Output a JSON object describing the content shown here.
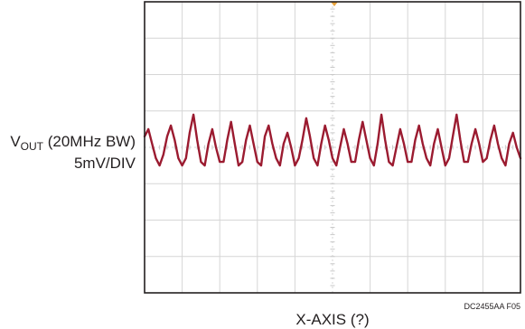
{
  "chart_data": {
    "type": "line",
    "title": "",
    "ylabel": {
      "symbol": "V",
      "subscript": "OUT",
      "qualifier": " (20MHz BW)",
      "scale": "5mV/DIV"
    },
    "xlabel": "X-AXIS (?)",
    "figure_code": "DC2455AA F05",
    "grid": true,
    "divisions": {
      "x": 10,
      "y": 8
    },
    "ylim": [
      -20,
      20
    ],
    "xlim": [
      0,
      10
    ],
    "series": [
      {
        "color": "#9b1b30",
        "x": [
          0,
          0.1,
          0.2,
          0.3,
          0.4,
          0.5,
          0.6,
          0.7,
          0.8,
          0.9,
          1.0,
          1.1,
          1.2,
          1.3,
          1.4,
          1.5,
          1.6,
          1.7,
          1.8,
          1.9,
          2.0,
          2.1,
          2.2,
          2.3,
          2.4,
          2.5,
          2.6,
          2.7,
          2.8,
          2.9,
          3.0,
          3.1,
          3.2,
          3.3,
          3.4,
          3.5,
          3.6,
          3.7,
          3.8,
          3.9,
          4.0,
          4.1,
          4.2,
          4.3,
          4.4,
          4.5,
          4.6,
          4.7,
          4.8,
          4.9,
          5.0,
          5.1,
          5.2,
          5.3,
          5.4,
          5.5,
          5.6,
          5.7,
          5.8,
          5.9,
          6.0,
          6.1,
          6.2,
          6.3,
          6.4,
          6.5,
          6.6,
          6.7,
          6.8,
          6.9,
          7.0,
          7.1,
          7.2,
          7.3,
          7.4,
          7.5,
          7.6,
          7.7,
          7.8,
          7.9,
          8.0,
          8.1,
          8.2,
          8.3,
          8.4,
          8.5,
          8.6,
          8.7,
          8.8,
          8.9,
          9.0,
          9.1,
          9.2,
          9.3,
          9.4,
          9.5,
          9.6,
          9.7,
          9.8,
          9.9,
          10.0
        ],
        "y": [
          1.5,
          2.5,
          0.5,
          -1.5,
          -2.5,
          -1.0,
          1.5,
          3.0,
          1.0,
          -1.5,
          -2.5,
          -1.5,
          2.0,
          4.5,
          1.0,
          -2.0,
          -2.5,
          0.5,
          2.5,
          0.0,
          -2.0,
          -2.0,
          1.0,
          3.5,
          0.5,
          -2.5,
          -2.0,
          1.0,
          3.0,
          0.5,
          -2.0,
          -2.5,
          1.5,
          3.0,
          0.5,
          -1.5,
          -2.5,
          0.5,
          2.0,
          0.0,
          -2.5,
          -1.5,
          1.0,
          4.0,
          1.5,
          -1.5,
          -2.5,
          0.5,
          3.0,
          1.0,
          -1.5,
          -2.5,
          0.0,
          2.5,
          0.5,
          -2.0,
          -2.0,
          1.0,
          3.5,
          1.0,
          -1.5,
          -2.5,
          0.5,
          4.5,
          1.0,
          -2.0,
          -2.5,
          0.0,
          2.5,
          0.5,
          -2.0,
          -2.0,
          1.0,
          3.0,
          0.5,
          -1.5,
          -2.5,
          0.5,
          2.5,
          0.0,
          -2.5,
          -1.5,
          1.5,
          4.5,
          1.0,
          -2.0,
          -2.0,
          0.5,
          2.5,
          0.5,
          -2.0,
          -1.5,
          1.0,
          3.0,
          0.5,
          -1.5,
          -2.5,
          0.5,
          2.0,
          0.0,
          -1.5
        ]
      }
    ]
  }
}
